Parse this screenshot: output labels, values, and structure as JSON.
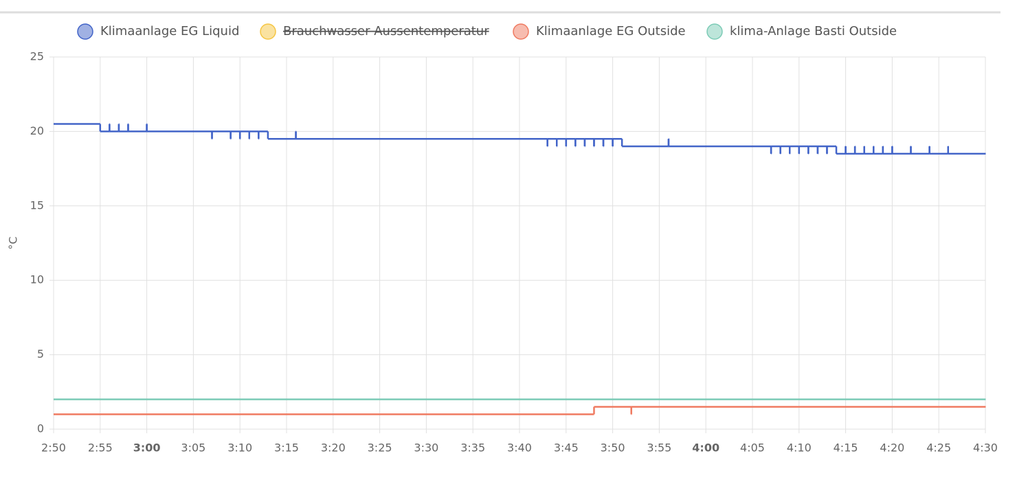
{
  "chart_data": {
    "type": "line",
    "step": true,
    "y_label": "°C",
    "xlim": [
      "2:50",
      "4:30"
    ],
    "xticks": [
      "2:50",
      "2:55",
      "3:00",
      "3:05",
      "3:10",
      "3:15",
      "3:20",
      "3:25",
      "3:30",
      "3:35",
      "3:40",
      "3:45",
      "3:50",
      "3:55",
      "4:00",
      "4:05",
      "4:10",
      "4:15",
      "4:20",
      "4:25",
      "4:30"
    ],
    "ylim": [
      0,
      25
    ],
    "yticks": [
      0,
      5,
      10,
      15,
      20,
      25
    ],
    "grid": true,
    "legend": "top",
    "series": [
      {
        "name": "Klimaanlage EG Liquid",
        "color": "#4264c8",
        "x": [
          "2:50",
          "2:55",
          "2:56",
          "2:56",
          "2:57",
          "2:57",
          "2:58",
          "2:58",
          "3:00",
          "3:00",
          "3:07",
          "3:07",
          "3:09",
          "3:09",
          "3:10",
          "3:10",
          "3:11",
          "3:11",
          "3:12",
          "3:12",
          "3:13",
          "3:16",
          "3:16",
          "3:43",
          "3:43",
          "3:44",
          "3:44",
          "3:45",
          "3:45",
          "3:46",
          "3:46",
          "3:47",
          "3:47",
          "3:48",
          "3:48",
          "3:49",
          "3:49",
          "3:50",
          "3:50",
          "3:51",
          "3:56",
          "3:56",
          "4:07",
          "4:07",
          "4:08",
          "4:08",
          "4:09",
          "4:09",
          "4:10",
          "4:10",
          "4:11",
          "4:11",
          "4:12",
          "4:12",
          "4:13",
          "4:13",
          "4:14",
          "4:15",
          "4:15",
          "4:16",
          "4:16",
          "4:17",
          "4:17",
          "4:18",
          "4:18",
          "4:19",
          "4:19",
          "4:20",
          "4:20",
          "4:22",
          "4:22",
          "4:24",
          "4:24",
          "4:26",
          "4:26",
          "4:30"
        ],
        "values": [
          20.5,
          20,
          20.5,
          20,
          20.5,
          20,
          20.5,
          20,
          20.5,
          20,
          19.5,
          20,
          19.5,
          20,
          19.5,
          20,
          19.5,
          20,
          19.5,
          20,
          19.5,
          20,
          19.5,
          19,
          19.5,
          19,
          19.5,
          19,
          19.5,
          19,
          19.5,
          19,
          19.5,
          19,
          19.5,
          19,
          19.5,
          19,
          19.5,
          19,
          19.5,
          19,
          18.5,
          19,
          18.5,
          19,
          18.5,
          19,
          18.5,
          19,
          18.5,
          19,
          18.5,
          19,
          18.5,
          19,
          18.5,
          19,
          18.5,
          19,
          18.5,
          19,
          18.5,
          19,
          18.5,
          19,
          18.5,
          19,
          18.5,
          19,
          18.5,
          19,
          18.5,
          19,
          18.5,
          18.5
        ]
      },
      {
        "name": "Brauchwasser Aussentemperatur",
        "color": "#f5c542",
        "hidden": true
      },
      {
        "name": "Klimaanlage EG Outside",
        "color": "#ef7a60",
        "x": [
          "2:50",
          "3:48",
          "3:52",
          "3:52",
          "4:30"
        ],
        "values": [
          1,
          1.5,
          1,
          1.5,
          1.5
        ]
      },
      {
        "name": "klima-Anlage Basti Outside",
        "color": "#7ccbb6",
        "x": [
          "2:50",
          "4:30"
        ],
        "values": [
          2,
          2
        ]
      }
    ]
  }
}
